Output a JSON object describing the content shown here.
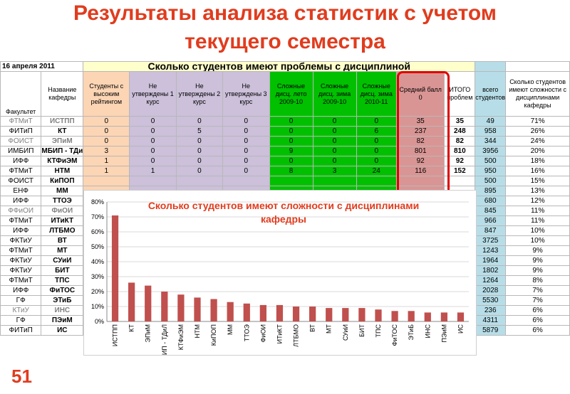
{
  "slide": {
    "title_line1": "Результаты анализа статистик с учетом",
    "title_line2": "текущего семестра",
    "number": "51"
  },
  "sheet": {
    "date": "16 апреля 2011",
    "banner": "Сколько студентов имеют проблемы с дисциплиной",
    "headers": {
      "faculty": "Факультет",
      "dept": "Название кафедры",
      "high": "Студенты с высоким рейтингом",
      "nc1": "Не утверждены 1 курс",
      "nc2": "Не утверждены 2 курс",
      "nc3": "Не утверждены 3 курс",
      "hard1": "Сложные дисц. лето 2009-10",
      "hard2": "Сложные дисц. зима 2009-10",
      "hard3": "Сложные дисц. зима 2010-11",
      "avg": "Средний балл 0",
      "total": "ИТОГО проблем",
      "all": "всего студентов",
      "pct": "Сколько студентов имеют сложности с дисциплинами кафедры"
    },
    "rows": [
      {
        "f": "ФТМиТ",
        "d": "ИСТПП",
        "h": "0",
        "n1": "0",
        "n2": "0",
        "n3": "0",
        "s1": "0",
        "s2": "0",
        "s3": "0",
        "avg": "35",
        "tot": "35",
        "all": "49",
        "pct": "71%"
      },
      {
        "f": "ФИТиП",
        "d": "КТ",
        "h": "0",
        "n1": "0",
        "n2": "5",
        "n3": "0",
        "s1": "0",
        "s2": "0",
        "s3": "6",
        "avg": "237",
        "tot": "248",
        "all": "958",
        "pct": "26%"
      },
      {
        "f": "ФОИСТ",
        "d": "ЭПиМ",
        "h": "0",
        "n1": "0",
        "n2": "0",
        "n3": "0",
        "s1": "0",
        "s2": "0",
        "s3": "0",
        "avg": "82",
        "tot": "82",
        "all": "344",
        "pct": "24%"
      },
      {
        "f": "ИМБИП",
        "d": "МБИП - ТДи",
        "h": "3",
        "n1": "0",
        "n2": "0",
        "n3": "0",
        "s1": "9",
        "s2": "0",
        "s3": "0",
        "avg": "801",
        "tot": "810",
        "all": "3956",
        "pct": "20%"
      },
      {
        "f": "ИФФ",
        "d": "КТФиЭМ",
        "h": "1",
        "n1": "0",
        "n2": "0",
        "n3": "0",
        "s1": "0",
        "s2": "0",
        "s3": "0",
        "avg": "92",
        "tot": "92",
        "all": "500",
        "pct": "18%"
      },
      {
        "f": "ФТМиТ",
        "d": "НТМ",
        "h": "1",
        "n1": "1",
        "n2": "0",
        "n3": "0",
        "s1": "8",
        "s2": "3",
        "s3": "24",
        "avg": "116",
        "tot": "152",
        "all": "950",
        "pct": "16%"
      },
      {
        "f": "ФОИСТ",
        "d": "КиПОП",
        "h": "",
        "n1": "",
        "n2": "",
        "n3": "",
        "s1": "",
        "s2": "",
        "s3": "",
        "avg": "",
        "tot": "",
        "all": "500",
        "pct": "15%"
      },
      {
        "f": "ЕНФ",
        "d": "ММ",
        "h": "",
        "n1": "",
        "n2": "",
        "n3": "",
        "s1": "",
        "s2": "",
        "s3": "",
        "avg": "",
        "tot": "",
        "all": "895",
        "pct": "13%"
      },
      {
        "f": "ИФФ",
        "d": "ТТОЭ",
        "h": "",
        "n1": "",
        "n2": "",
        "n3": "",
        "s1": "",
        "s2": "",
        "s3": "",
        "avg": "",
        "tot": "",
        "all": "680",
        "pct": "12%"
      },
      {
        "f": "ФФиОИ",
        "d": "ФиОИ",
        "h": "",
        "n1": "",
        "n2": "",
        "n3": "",
        "s1": "",
        "s2": "",
        "s3": "",
        "avg": "",
        "tot": "",
        "all": "845",
        "pct": "11%"
      },
      {
        "f": "ФТМиТ",
        "d": "ИТиКТ",
        "h": "",
        "n1": "",
        "n2": "",
        "n3": "",
        "s1": "",
        "s2": "",
        "s3": "",
        "avg": "",
        "tot": "",
        "all": "966",
        "pct": "11%"
      },
      {
        "f": "ИФФ",
        "d": "ЛТБМО",
        "h": "",
        "n1": "",
        "n2": "",
        "n3": "",
        "s1": "",
        "s2": "",
        "s3": "",
        "avg": "",
        "tot": "",
        "all": "847",
        "pct": "10%"
      },
      {
        "f": "ФКТиУ",
        "d": "ВТ",
        "h": "",
        "n1": "",
        "n2": "",
        "n3": "",
        "s1": "",
        "s2": "",
        "s3": "",
        "avg": "",
        "tot": "",
        "all": "3725",
        "pct": "10%"
      },
      {
        "f": "ФТМиТ",
        "d": "МТ",
        "h": "",
        "n1": "",
        "n2": "",
        "n3": "",
        "s1": "",
        "s2": "",
        "s3": "",
        "avg": "",
        "tot": "",
        "all": "1243",
        "pct": "9%"
      },
      {
        "f": "ФКТиУ",
        "d": "СУиИ",
        "h": "",
        "n1": "",
        "n2": "",
        "n3": "",
        "s1": "",
        "s2": "",
        "s3": "",
        "avg": "",
        "tot": "",
        "all": "1964",
        "pct": "9%"
      },
      {
        "f": "ФКТиУ",
        "d": "БИТ",
        "h": "",
        "n1": "",
        "n2": "",
        "n3": "",
        "s1": "",
        "s2": "",
        "s3": "",
        "avg": "",
        "tot": "",
        "all": "1802",
        "pct": "9%"
      },
      {
        "f": "ФТМиТ",
        "d": "ТПС",
        "h": "",
        "n1": "",
        "n2": "",
        "n3": "",
        "s1": "",
        "s2": "",
        "s3": "",
        "avg": "",
        "tot": "",
        "all": "1264",
        "pct": "8%"
      },
      {
        "f": "ИФФ",
        "d": "ФиТОС",
        "h": "",
        "n1": "",
        "n2": "",
        "n3": "",
        "s1": "",
        "s2": "",
        "s3": "",
        "avg": "",
        "tot": "",
        "all": "2028",
        "pct": "7%"
      },
      {
        "f": "ГФ",
        "d": "ЭТиБ",
        "h": "",
        "n1": "",
        "n2": "",
        "n3": "",
        "s1": "",
        "s2": "",
        "s3": "",
        "avg": "",
        "tot": "",
        "all": "5530",
        "pct": "7%"
      },
      {
        "f": "КТиУ",
        "d": "ИНС",
        "h": "",
        "n1": "",
        "n2": "",
        "n3": "",
        "s1": "",
        "s2": "",
        "s3": "",
        "avg": "",
        "tot": "",
        "all": "236",
        "pct": "6%"
      },
      {
        "f": "ГФ",
        "d": "ПЭиМ",
        "h": "",
        "n1": "",
        "n2": "",
        "n3": "",
        "s1": "",
        "s2": "",
        "s3": "",
        "avg": "",
        "tot": "",
        "all": "4311",
        "pct": "6%"
      },
      {
        "f": "ФИТиП",
        "d": "ИС",
        "h": "",
        "n1": "",
        "n2": "",
        "n3": "",
        "s1": "",
        "s2": "",
        "s3": "",
        "avg": "",
        "tot": "",
        "all": "5879",
        "pct": "6%"
      }
    ]
  },
  "chart_data": {
    "type": "bar",
    "title": "Сколько студентов имеют сложности с дисциплинами кафедры",
    "categories": [
      "ИСТПП",
      "КТ",
      "ЭПиМ",
      "ИМБИП - ТДиЛ",
      "КТФиЭМ",
      "НТМ",
      "КиПОП",
      "ММ",
      "ТТОЭ",
      "ФиОИ",
      "ИТиКТ",
      "ЛТБМО",
      "ВТ",
      "МТ",
      "СУиИ",
      "БИТ",
      "ТПС",
      "ФиТОС",
      "ЭТиБ",
      "ИНС",
      "ПЭиМ",
      "ИС"
    ],
    "values": [
      71,
      26,
      24,
      20,
      18,
      16,
      15,
      13,
      12,
      11,
      11,
      10,
      10,
      9,
      9,
      9,
      8,
      7,
      7,
      6,
      6,
      6
    ],
    "y_ticks": [
      "0%",
      "10%",
      "20%",
      "30%",
      "40%",
      "50%",
      "60%",
      "70%",
      "80%"
    ],
    "ylim": [
      0,
      80
    ],
    "grid": true,
    "bar_color": "#c0504d",
    "title_color": "#e03c1e"
  }
}
